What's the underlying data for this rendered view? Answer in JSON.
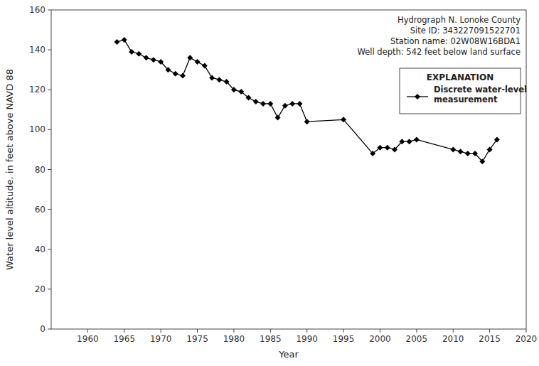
{
  "chart_data": {
    "type": "line",
    "x": [
      1964,
      1965,
      1966,
      1967,
      1968,
      1969,
      1970,
      1971,
      1972,
      1973,
      1974,
      1975,
      1976,
      1977,
      1978,
      1979,
      1980,
      1981,
      1982,
      1983,
      1984,
      1985,
      1986,
      1987,
      1988,
      1989,
      1990,
      1995,
      1999,
      2000,
      2001,
      2002,
      2003,
      2004,
      2005,
      2010,
      2011,
      2012,
      2013,
      2014,
      2015,
      2016
    ],
    "values": [
      144,
      145,
      139,
      138,
      136,
      135,
      134,
      130,
      128,
      127,
      136,
      134,
      132,
      126,
      125,
      124,
      120,
      119,
      116,
      114,
      113,
      113,
      106,
      112,
      113,
      113,
      104,
      105,
      88,
      91,
      91,
      90,
      94,
      94,
      95,
      90,
      89,
      88,
      88,
      84,
      90,
      95
    ],
    "name": "Discrete water-level\nmeasurement",
    "color": "#000000",
    "marker": "diamond",
    "xlim": [
      1955,
      2020
    ],
    "ylim": [
      0,
      160
    ],
    "xticks": [
      1960,
      1965,
      1970,
      1975,
      1980,
      1985,
      1990,
      1995,
      2000,
      2005,
      2010,
      2015,
      2020
    ],
    "yticks": [
      0,
      20,
      40,
      60,
      80,
      100,
      120,
      140,
      160
    ],
    "x_label": "Year",
    "y_label": "Water level altitude, in feet above NAVD 88",
    "annotations": [
      "Hydrograph N. Lonoke County",
      "Site ID: 343227091522701",
      "Station name: 02W08W16BDA1",
      "Well depth: 542 feet below land surface"
    ],
    "legend_title": "EXPLANATION",
    "legend": "upper right",
    "grid": false
  }
}
